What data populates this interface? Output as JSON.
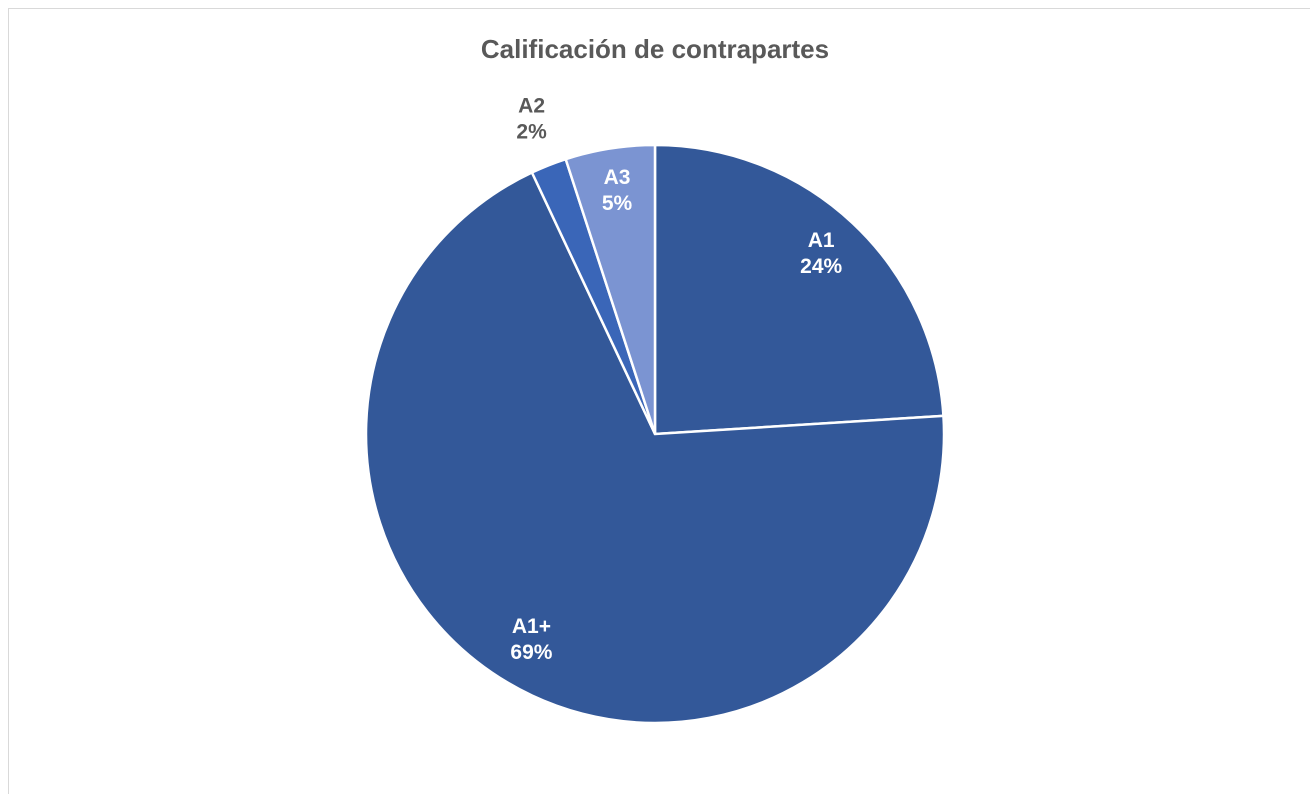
{
  "chart_data": {
    "type": "pie",
    "title": "Calificación de contrapartes",
    "categories": [
      "A1",
      "A1+",
      "A2",
      "A3"
    ],
    "values": [
      24,
      69,
      2,
      5
    ],
    "value_labels": [
      "24%",
      "69%",
      "2%",
      "5%"
    ],
    "colors": [
      "#335899",
      "#335899",
      "#3a66b8",
      "#7b94d2"
    ]
  }
}
